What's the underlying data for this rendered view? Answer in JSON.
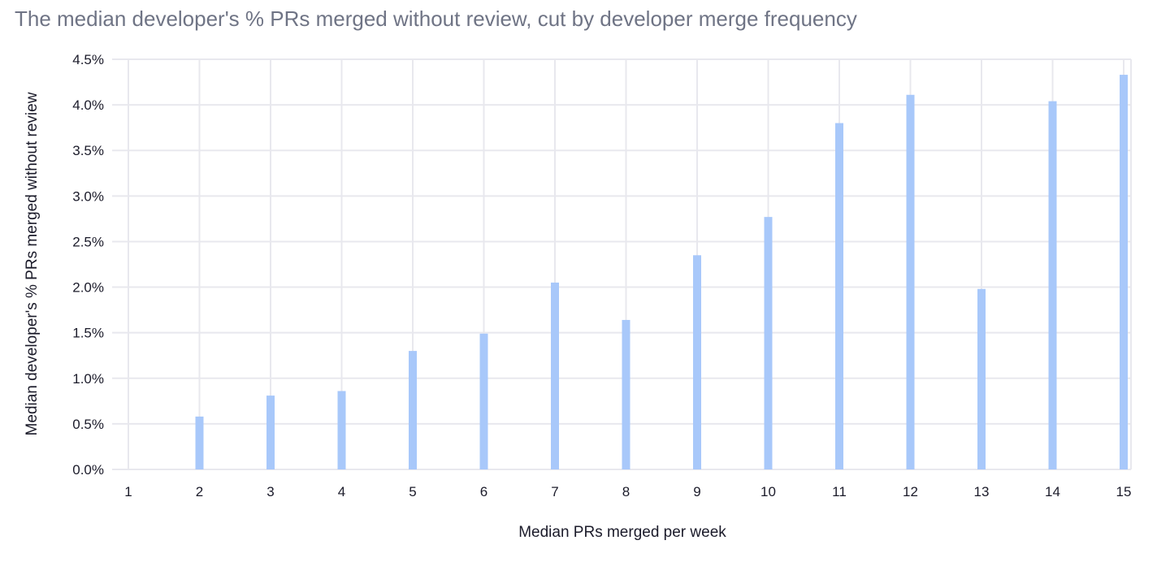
{
  "chart_data": {
    "type": "bar",
    "title": "The median developer's % PRs merged without review, cut by developer merge frequency",
    "xlabel": "Median PRs merged per week",
    "ylabel": "Median developer's % PRs merged without review",
    "categories": [
      "1",
      "2",
      "3",
      "4",
      "5",
      "6",
      "7",
      "8",
      "9",
      "10",
      "11",
      "12",
      "13",
      "14",
      "15"
    ],
    "values": [
      0,
      0.58,
      0.81,
      0.86,
      1.3,
      1.49,
      2.05,
      1.64,
      2.35,
      2.77,
      3.8,
      4.11,
      1.98,
      4.04,
      4.33
    ],
    "ylim": [
      0,
      4.5
    ],
    "yticks": [
      "0.0%",
      "0.5%",
      "1.0%",
      "1.5%",
      "2.0%",
      "2.5%",
      "3.0%",
      "3.5%",
      "4.0%",
      "4.5%"
    ],
    "grid": true,
    "bar_color": "#a8c8fa",
    "grid_color": "#e8e8ee"
  }
}
